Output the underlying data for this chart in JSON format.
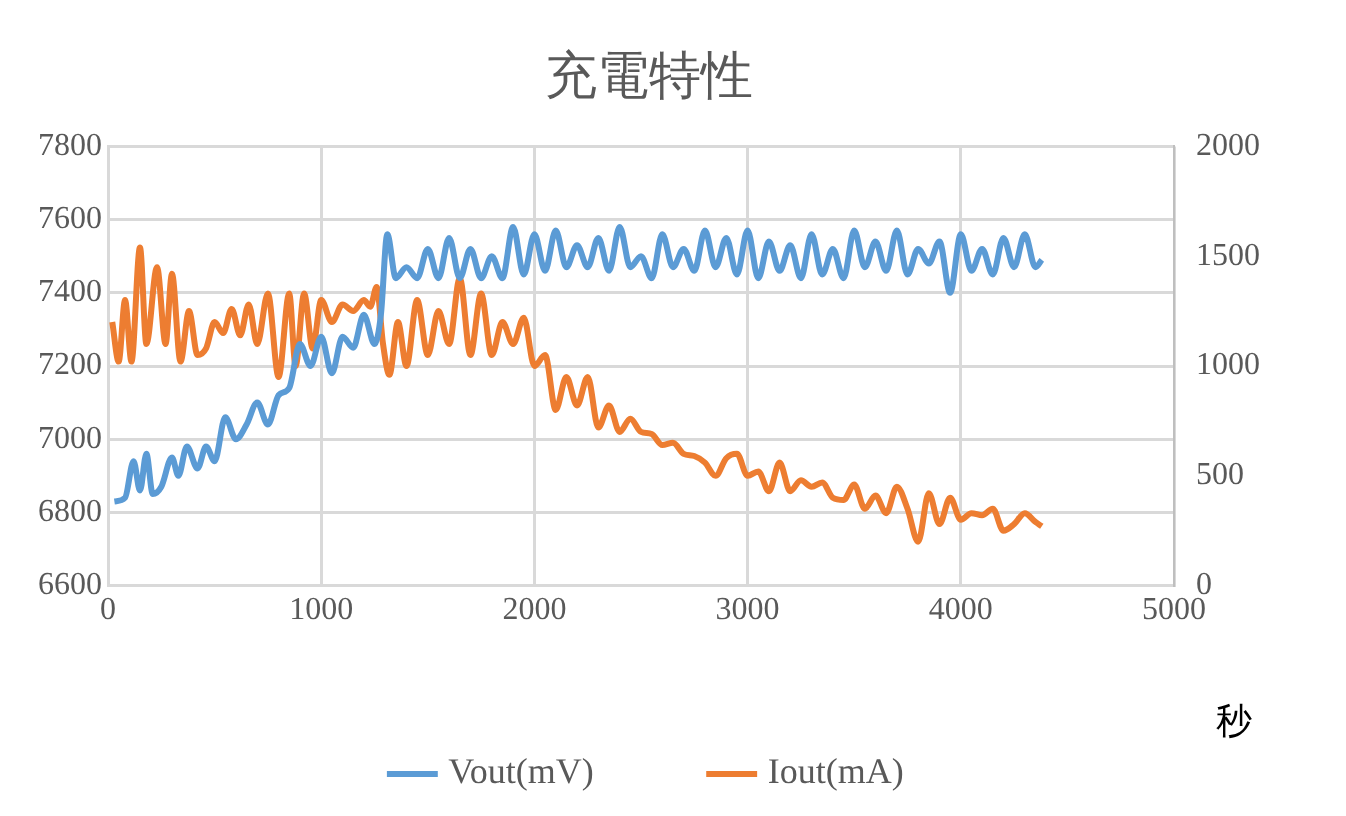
{
  "chart_data": {
    "type": "line",
    "title": "充電特性",
    "xlabel": "秒",
    "xlim": [
      0,
      5000
    ],
    "xticks": [
      0,
      1000,
      2000,
      3000,
      4000,
      5000
    ],
    "ylim": [
      6600,
      7800
    ],
    "yticks": [
      6600,
      6800,
      7000,
      7200,
      7400,
      7600,
      7800
    ],
    "y2lim": [
      0,
      2000
    ],
    "y2ticks": [
      0,
      500,
      1000,
      1500,
      2000
    ],
    "grid": true,
    "legend": "bottom",
    "marker": "none",
    "line_style": "solid",
    "series": [
      {
        "name": "Vout(mV)",
        "color": "#5b9bd5",
        "x": [
          30,
          80,
          120,
          150,
          180,
          210,
          250,
          300,
          330,
          370,
          420,
          460,
          500,
          550,
          600,
          650,
          700,
          750,
          800,
          850,
          900,
          950,
          1000,
          1050,
          1100,
          1150,
          1200,
          1250,
          1280,
          1310,
          1350,
          1400,
          1450,
          1500,
          1550,
          1600,
          1650,
          1700,
          1750,
          1800,
          1850,
          1900,
          1950,
          2000,
          2050,
          2100,
          2150,
          2200,
          2250,
          2300,
          2350,
          2400,
          2450,
          2500,
          2550,
          2600,
          2650,
          2700,
          2750,
          2800,
          2850,
          2900,
          2950,
          3000,
          3050,
          3100,
          3150,
          3200,
          3250,
          3300,
          3350,
          3400,
          3450,
          3500,
          3550,
          3600,
          3650,
          3700,
          3750,
          3800,
          3850,
          3900,
          3950,
          4000,
          4050,
          4100,
          4150,
          4200,
          4250,
          4300,
          4350,
          4380
        ],
        "values": [
          6830,
          6840,
          6940,
          6860,
          6960,
          6850,
          6870,
          6950,
          6900,
          6980,
          6920,
          6980,
          6940,
          7060,
          7000,
          7040,
          7100,
          7040,
          7120,
          7140,
          7260,
          7200,
          7280,
          7180,
          7280,
          7250,
          7340,
          7260,
          7340,
          7560,
          7440,
          7470,
          7440,
          7520,
          7440,
          7550,
          7440,
          7520,
          7440,
          7500,
          7440,
          7580,
          7450,
          7560,
          7460,
          7570,
          7470,
          7530,
          7470,
          7550,
          7460,
          7580,
          7470,
          7500,
          7440,
          7560,
          7470,
          7520,
          7460,
          7570,
          7470,
          7550,
          7450,
          7570,
          7440,
          7540,
          7460,
          7530,
          7440,
          7560,
          7450,
          7520,
          7440,
          7570,
          7470,
          7540,
          7460,
          7570,
          7450,
          7520,
          7480,
          7540,
          7400,
          7560,
          7460,
          7520,
          7450,
          7550,
          7470,
          7560,
          7470,
          7490
        ]
      },
      {
        "name": "Iout(mA)",
        "color": "#ed7d31",
        "axis": "y2",
        "x": [
          20,
          50,
          80,
          110,
          150,
          180,
          230,
          270,
          300,
          340,
          380,
          420,
          460,
          500,
          540,
          580,
          620,
          660,
          700,
          750,
          800,
          850,
          880,
          920,
          960,
          1000,
          1050,
          1100,
          1150,
          1200,
          1230,
          1260,
          1290,
          1320,
          1360,
          1400,
          1450,
          1500,
          1550,
          1600,
          1650,
          1700,
          1750,
          1800,
          1850,
          1900,
          1950,
          2000,
          2050,
          2100,
          2150,
          2200,
          2250,
          2300,
          2350,
          2400,
          2450,
          2500,
          2550,
          2600,
          2650,
          2700,
          2750,
          2800,
          2850,
          2900,
          2950,
          3000,
          3050,
          3100,
          3150,
          3200,
          3250,
          3300,
          3350,
          3400,
          3450,
          3500,
          3550,
          3600,
          3650,
          3700,
          3750,
          3800,
          3850,
          3900,
          3950,
          4000,
          4050,
          4100,
          4150,
          4200,
          4250,
          4300,
          4350,
          4380
        ],
        "values": [
          1200,
          1020,
          1300,
          1020,
          1540,
          1100,
          1450,
          1100,
          1420,
          1020,
          1250,
          1050,
          1080,
          1200,
          1150,
          1260,
          1140,
          1280,
          1100,
          1330,
          950,
          1330,
          1000,
          1330,
          1080,
          1300,
          1200,
          1280,
          1250,
          1300,
          1270,
          1360,
          1100,
          960,
          1200,
          1000,
          1300,
          1050,
          1250,
          1100,
          1400,
          1050,
          1330,
          1050,
          1200,
          1100,
          1220,
          1000,
          1050,
          800,
          950,
          820,
          950,
          720,
          820,
          700,
          760,
          700,
          690,
          640,
          650,
          600,
          590,
          560,
          500,
          580,
          600,
          500,
          520,
          430,
          560,
          430,
          480,
          450,
          470,
          400,
          390,
          460,
          350,
          410,
          330,
          450,
          350,
          200,
          420,
          280,
          400,
          300,
          330,
          320,
          350,
          250,
          280,
          330,
          290,
          270
        ]
      }
    ]
  }
}
